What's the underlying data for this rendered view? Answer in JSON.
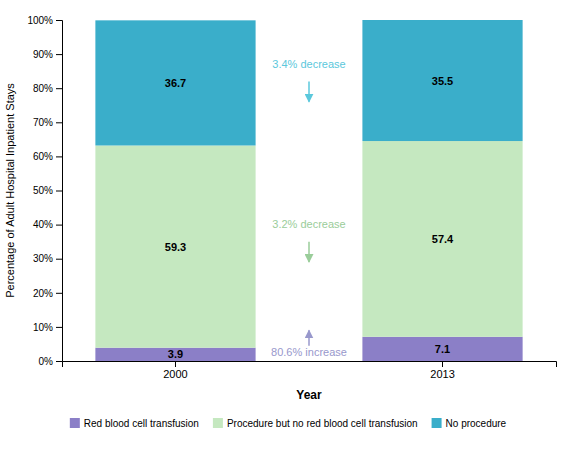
{
  "chart_data": {
    "type": "bar",
    "stacked": true,
    "categories": [
      "2000",
      "2013"
    ],
    "series": [
      {
        "name": "Red blood cell transfusion",
        "color": "#8B7FC7",
        "values": [
          3.9,
          7.1
        ]
      },
      {
        "name": "Procedure but no red blood cell transfusion",
        "color": "#C5E8C0",
        "values": [
          59.3,
          57.4
        ]
      },
      {
        "name": "No procedure",
        "color": "#3AAECA",
        "values": [
          36.7,
          35.5
        ]
      }
    ],
    "xlabel": "Year",
    "ylabel": "Percentage of Adult Hospital Inpatient Stays",
    "ylim": [
      0,
      100
    ],
    "yticks": [
      {
        "value": 0,
        "label": "0%"
      },
      {
        "value": 10,
        "label": "10%"
      },
      {
        "value": 20,
        "label": "20%"
      },
      {
        "value": 30,
        "label": "30%"
      },
      {
        "value": 40,
        "label": "40%"
      },
      {
        "value": 50,
        "label": "50%"
      },
      {
        "value": 60,
        "label": "60%"
      },
      {
        "value": 70,
        "label": "70%"
      },
      {
        "value": 80,
        "label": "80%"
      },
      {
        "value": 90,
        "label": "90%"
      },
      {
        "value": 100,
        "label": "100%"
      }
    ],
    "grid": false,
    "legend": "bottom",
    "data_labels": true,
    "annotations": [
      {
        "text": "3.4% decrease",
        "color": "#5BC8DC",
        "y": 85,
        "arrow_from": 82,
        "arrow_to": 76
      },
      {
        "text": "3.2% decrease",
        "color": "#9ACD9A",
        "y": 38,
        "arrow_from": 35,
        "arrow_to": 29
      },
      {
        "text": "80.6% increase",
        "color": "#9898CC",
        "y": 5.5,
        "arrow_from": 4.5,
        "arrow_to": 9.0
      }
    ]
  }
}
